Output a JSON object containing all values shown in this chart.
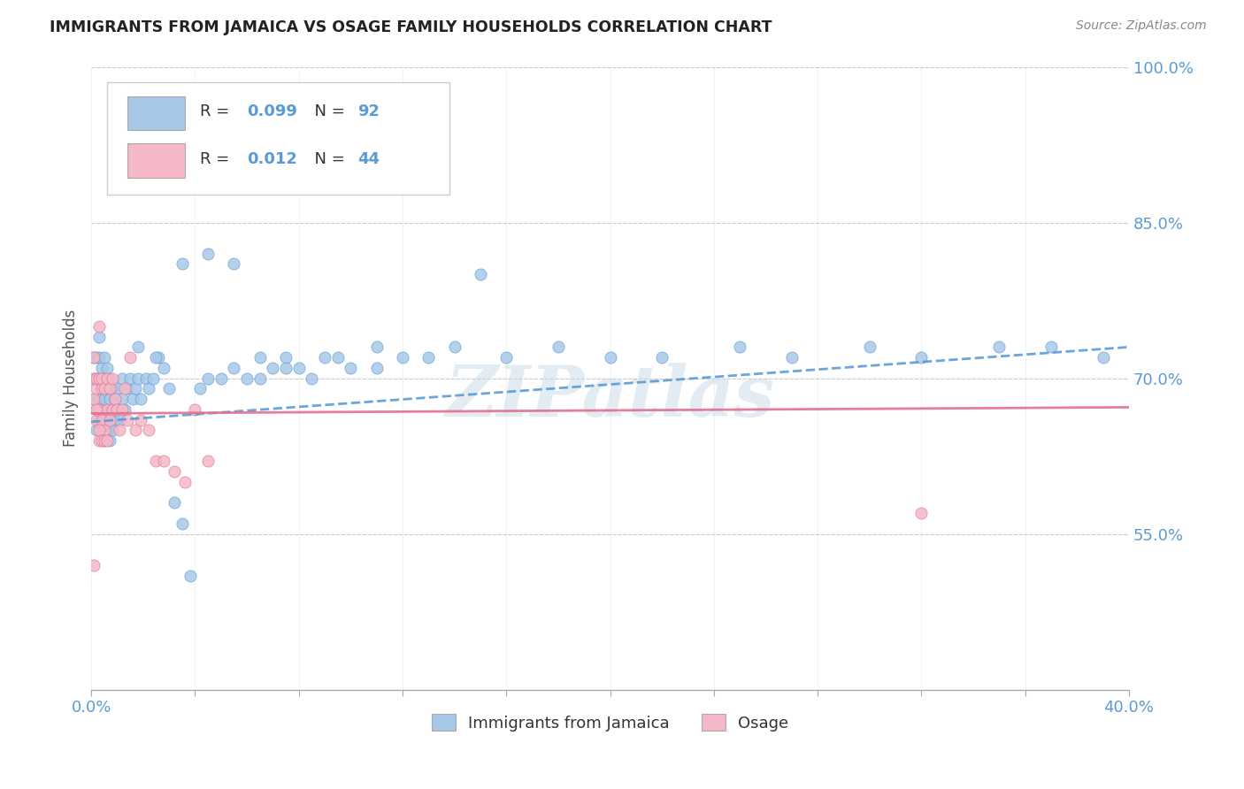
{
  "title": "IMMIGRANTS FROM JAMAICA VS OSAGE FAMILY HOUSEHOLDS CORRELATION CHART",
  "source_text": "Source: ZipAtlas.com",
  "ylabel": "Family Households",
  "x_min": 0.0,
  "x_max": 0.4,
  "y_min": 0.4,
  "y_max": 1.0,
  "y_ticks": [
    0.55,
    0.7,
    0.85,
    1.0
  ],
  "y_tick_labels": [
    "55.0%",
    "70.0%",
    "85.0%",
    "100.0%"
  ],
  "color_blue": "#a8c8e8",
  "color_pink": "#f4b8c8",
  "color_blue_dark": "#5b9bd5",
  "color_pink_dark": "#e07090",
  "watermark": "ZIPatlas",
  "blue_scatter_x": [
    0.001,
    0.001,
    0.001,
    0.002,
    0.002,
    0.002,
    0.002,
    0.003,
    0.003,
    0.003,
    0.003,
    0.003,
    0.004,
    0.004,
    0.004,
    0.004,
    0.005,
    0.005,
    0.005,
    0.005,
    0.005,
    0.006,
    0.006,
    0.006,
    0.006,
    0.007,
    0.007,
    0.007,
    0.007,
    0.008,
    0.008,
    0.008,
    0.009,
    0.009,
    0.01,
    0.01,
    0.011,
    0.012,
    0.012,
    0.013,
    0.014,
    0.015,
    0.016,
    0.017,
    0.018,
    0.019,
    0.021,
    0.022,
    0.024,
    0.026,
    0.028,
    0.03,
    0.032,
    0.035,
    0.038,
    0.042,
    0.045,
    0.05,
    0.055,
    0.06,
    0.065,
    0.07,
    0.075,
    0.08,
    0.09,
    0.1,
    0.11,
    0.12,
    0.14,
    0.16,
    0.18,
    0.2,
    0.22,
    0.25,
    0.27,
    0.3,
    0.32,
    0.35,
    0.37,
    0.39,
    0.018,
    0.025,
    0.035,
    0.045,
    0.055,
    0.065,
    0.075,
    0.085,
    0.095,
    0.11,
    0.13,
    0.15
  ],
  "blue_scatter_y": [
    0.68,
    0.7,
    0.72,
    0.65,
    0.67,
    0.7,
    0.72,
    0.66,
    0.68,
    0.7,
    0.72,
    0.74,
    0.65,
    0.67,
    0.69,
    0.71,
    0.64,
    0.66,
    0.68,
    0.7,
    0.72,
    0.65,
    0.67,
    0.69,
    0.71,
    0.64,
    0.66,
    0.68,
    0.7,
    0.65,
    0.67,
    0.69,
    0.66,
    0.68,
    0.67,
    0.69,
    0.66,
    0.68,
    0.7,
    0.67,
    0.69,
    0.7,
    0.68,
    0.69,
    0.7,
    0.68,
    0.7,
    0.69,
    0.7,
    0.72,
    0.71,
    0.69,
    0.58,
    0.56,
    0.51,
    0.69,
    0.7,
    0.7,
    0.71,
    0.7,
    0.72,
    0.71,
    0.72,
    0.71,
    0.72,
    0.71,
    0.73,
    0.72,
    0.73,
    0.72,
    0.73,
    0.72,
    0.72,
    0.73,
    0.72,
    0.73,
    0.72,
    0.73,
    0.73,
    0.72,
    0.73,
    0.72,
    0.81,
    0.82,
    0.81,
    0.7,
    0.71,
    0.7,
    0.72,
    0.71,
    0.72,
    0.8
  ],
  "pink_scatter_x": [
    0.001,
    0.001,
    0.001,
    0.002,
    0.002,
    0.002,
    0.003,
    0.003,
    0.003,
    0.004,
    0.004,
    0.004,
    0.005,
    0.005,
    0.006,
    0.006,
    0.007,
    0.007,
    0.008,
    0.008,
    0.009,
    0.01,
    0.011,
    0.012,
    0.013,
    0.014,
    0.015,
    0.017,
    0.019,
    0.022,
    0.025,
    0.028,
    0.032,
    0.036,
    0.04,
    0.045,
    0.001,
    0.002,
    0.003,
    0.004,
    0.005,
    0.006,
    0.32,
    0.003
  ],
  "pink_scatter_y": [
    0.68,
    0.7,
    0.72,
    0.66,
    0.69,
    0.7,
    0.64,
    0.67,
    0.7,
    0.66,
    0.69,
    0.7,
    0.65,
    0.69,
    0.67,
    0.7,
    0.66,
    0.69,
    0.67,
    0.7,
    0.68,
    0.67,
    0.65,
    0.67,
    0.69,
    0.66,
    0.72,
    0.65,
    0.66,
    0.65,
    0.62,
    0.62,
    0.61,
    0.6,
    0.67,
    0.62,
    0.52,
    0.67,
    0.65,
    0.64,
    0.64,
    0.64,
    0.57,
    0.75
  ],
  "blue_trend_x": [
    0.0,
    0.4
  ],
  "blue_trend_y": [
    0.658,
    0.73
  ],
  "pink_trend_x": [
    0.0,
    0.4
  ],
  "pink_trend_y": [
    0.666,
    0.672
  ]
}
